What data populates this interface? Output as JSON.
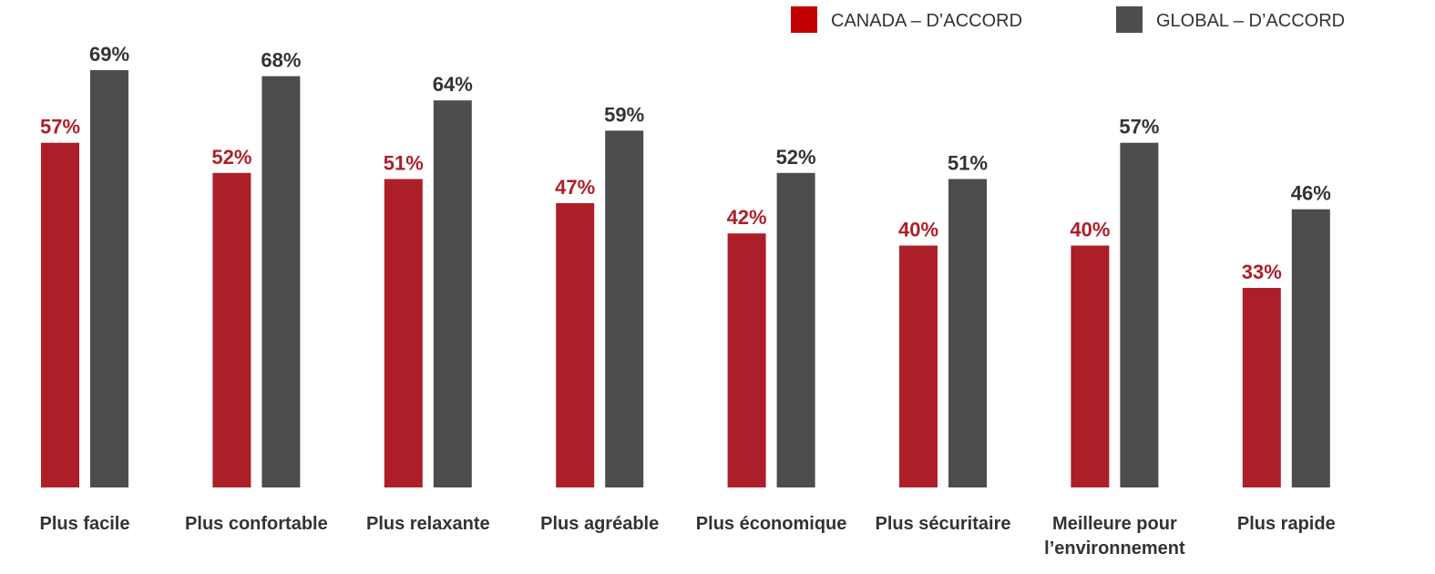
{
  "chart_data": {
    "type": "bar",
    "categories": [
      [
        "Plus facile"
      ],
      [
        "Plus confortable"
      ],
      [
        "Plus relaxante"
      ],
      [
        "Plus agréable"
      ],
      [
        "Plus économique"
      ],
      [
        "Plus sécuritaire"
      ],
      [
        "Meilleure pour",
        "l’environnement"
      ],
      [
        "Plus rapide"
      ]
    ],
    "series": [
      {
        "name": "CANADA – D’ACCORD",
        "color": "#ad1f28",
        "values": [
          57,
          52,
          51,
          47,
          42,
          40,
          40,
          33
        ]
      },
      {
        "name": "GLOBAL – D’ACCORD",
        "color": "#4d4d4d",
        "values": [
          69,
          68,
          64,
          59,
          52,
          51,
          57,
          46
        ]
      }
    ],
    "value_suffix": "%",
    "legend_position": "top-right",
    "grid": false,
    "ylim": [
      0,
      100
    ]
  }
}
